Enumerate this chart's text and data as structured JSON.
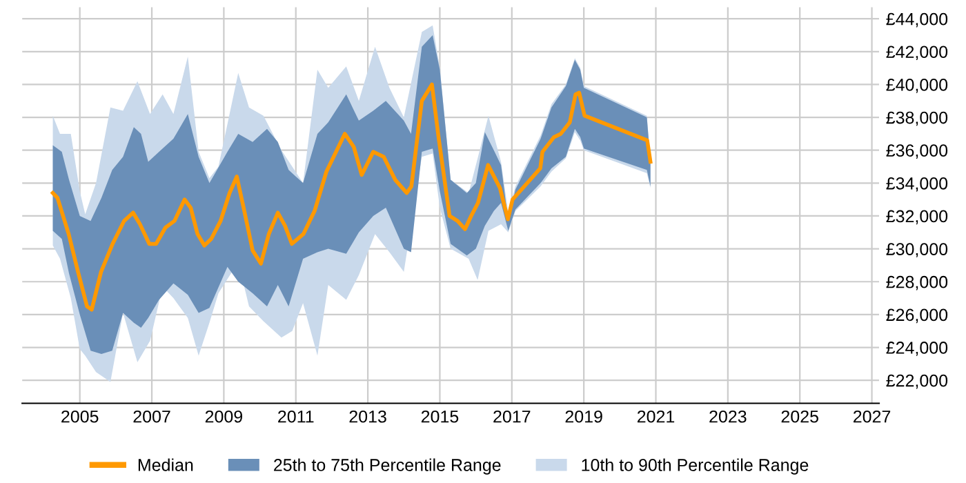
{
  "chart_data": {
    "type": "line",
    "xlim": [
      2003.4,
      2027.2
    ],
    "xticks": [
      2005,
      2007,
      2009,
      2011,
      2013,
      2015,
      2017,
      2019,
      2021,
      2023,
      2025,
      2027
    ],
    "ylim": [
      20600,
      44700
    ],
    "yticks": [
      {
        "value": 22000,
        "label": "£22,000"
      },
      {
        "value": 24000,
        "label": "£24,000"
      },
      {
        "value": 26000,
        "label": "£26,000"
      },
      {
        "value": 28000,
        "label": "£28,000"
      },
      {
        "value": 30000,
        "label": "£30,000"
      },
      {
        "value": 32000,
        "label": "£32,000"
      },
      {
        "value": 34000,
        "label": "£34,000"
      },
      {
        "value": 36000,
        "label": "£36,000"
      },
      {
        "value": 38000,
        "label": "£38,000"
      },
      {
        "value": 40000,
        "label": "£40,000"
      },
      {
        "value": 42000,
        "label": "£42,000"
      },
      {
        "value": 44000,
        "label": "£44,000"
      }
    ],
    "grid": true,
    "legend": "bottom",
    "marker": "none",
    "line_style": "solid",
    "series": [
      {
        "name": "Median",
        "color": "#ff9900",
        "x": [
          2004.25,
          2004.38,
          2004.69,
          2004.95,
          2005.2,
          2005.33,
          2005.59,
          2005.91,
          2006.23,
          2006.48,
          2006.67,
          2006.93,
          2007.12,
          2007.38,
          2007.63,
          2007.91,
          2008.08,
          2008.27,
          2008.46,
          2008.65,
          2008.91,
          2009.16,
          2009.36,
          2009.55,
          2009.8,
          2010.03,
          2010.25,
          2010.5,
          2010.7,
          2010.89,
          2011.21,
          2011.52,
          2011.85,
          2012.36,
          2012.61,
          2012.83,
          2013.15,
          2013.44,
          2013.76,
          2014.08,
          2014.21,
          2014.5,
          2014.78,
          2014.97,
          2015.27,
          2015.49,
          2015.7,
          2015.87,
          2016.06,
          2016.34,
          2016.67,
          2016.89,
          2017.02,
          2017.79,
          2017.85,
          2018.17,
          2018.36,
          2018.61,
          2018.77,
          2018.87,
          2019.02,
          2020.76,
          2020.85
        ],
        "values": [
          33400,
          33100,
          30900,
          28600,
          26500,
          26300,
          28600,
          30300,
          31700,
          32200,
          31500,
          30300,
          30300,
          31300,
          31700,
          33000,
          32500,
          30900,
          30200,
          30600,
          31700,
          33400,
          34400,
          32500,
          29900,
          29100,
          30900,
          32200,
          31400,
          30300,
          30900,
          32300,
          34700,
          37000,
          36200,
          34500,
          35900,
          35600,
          34200,
          33400,
          33800,
          39000,
          40000,
          36700,
          32000,
          31700,
          31200,
          32000,
          32800,
          35100,
          33700,
          31800,
          33000,
          34900,
          35900,
          36800,
          37000,
          37700,
          39400,
          39500,
          38100,
          36600,
          35300
        ]
      },
      {
        "name": "25th to 75th Percentile Range",
        "color": "#6a8fb8",
        "x": [
          2004.25,
          2004.5,
          2004.7,
          2005.0,
          2005.3,
          2005.6,
          2005.9,
          2006.2,
          2006.5,
          2006.7,
          2006.9,
          2007.2,
          2007.6,
          2008.0,
          2008.3,
          2008.6,
          2009.1,
          2009.4,
          2009.8,
          2010.2,
          2010.5,
          2010.8,
          2011.2,
          2011.6,
          2011.9,
          2012.4,
          2012.75,
          2013.15,
          2013.5,
          2014.0,
          2014.2,
          2014.5,
          2014.8,
          2015.0,
          2015.3,
          2015.75,
          2016.0,
          2016.25,
          2016.5,
          2016.7,
          2016.9,
          2017.1,
          2017.8,
          2018.1,
          2018.5,
          2018.75,
          2018.9,
          2019.0,
          2020.75,
          2020.85
        ],
        "values": [
          null,
          null,
          null,
          null,
          null,
          null,
          null,
          null,
          null,
          null,
          null,
          null,
          null,
          null,
          null,
          null,
          null,
          null,
          null,
          null,
          null,
          null,
          null,
          null,
          null,
          null,
          null,
          null,
          null,
          null,
          null,
          null,
          null,
          null,
          null,
          null,
          null,
          null,
          null,
          null,
          null,
          null,
          null,
          null,
          null,
          null,
          null,
          null,
          null,
          null
        ],
        "upper": [
          36300,
          35900,
          34200,
          32000,
          31700,
          33100,
          34800,
          35600,
          37400,
          37000,
          35300,
          35900,
          36700,
          38200,
          35600,
          34000,
          35900,
          37000,
          36500,
          37300,
          36500,
          34800,
          34000,
          37000,
          37700,
          39400,
          37800,
          38400,
          39000,
          37800,
          37000,
          42300,
          43000,
          40900,
          34200,
          33400,
          34000,
          37100,
          36000,
          35100,
          31700,
          33600,
          36700,
          38600,
          39900,
          41500,
          40900,
          39800,
          38000,
          35300
        ],
        "lower": [
          31100,
          30600,
          28500,
          26000,
          23800,
          23600,
          23800,
          26100,
          25500,
          25200,
          25800,
          26900,
          27900,
          27200,
          26100,
          26400,
          28900,
          28000,
          27300,
          26500,
          27800,
          26500,
          29400,
          29800,
          30000,
          29700,
          31000,
          32000,
          32500,
          30000,
          29800,
          35900,
          36100,
          33500,
          30300,
          29600,
          30000,
          31400,
          32300,
          32800,
          31100,
          32400,
          34000,
          34900,
          35600,
          37300,
          36800,
          36100,
          34800,
          33800
        ]
      },
      {
        "name": "10th to 90th Percentile Range",
        "color": "#c9d9eb",
        "x": [
          2004.25,
          2004.45,
          2004.75,
          2005.0,
          2005.15,
          2005.45,
          2005.85,
          2006.2,
          2006.6,
          2006.95,
          2007.3,
          2007.6,
          2008.0,
          2008.3,
          2008.6,
          2008.85,
          2009.4,
          2009.7,
          2010.1,
          2010.6,
          2010.9,
          2011.2,
          2011.6,
          2011.9,
          2012.4,
          2012.75,
          2013.2,
          2013.6,
          2014.0,
          2014.5,
          2014.8,
          2015.0,
          2015.3,
          2015.8,
          2016.05,
          2016.35,
          2016.7,
          2016.9,
          2017.1,
          2017.8,
          2018.1,
          2018.5,
          2018.75,
          2018.9,
          2019.0,
          2020.75,
          2020.85
        ],
        "values": [
          null,
          null,
          null,
          null,
          null,
          null,
          null,
          null,
          null,
          null,
          null,
          null,
          null,
          null,
          null,
          null,
          null,
          null,
          null,
          null,
          null,
          null,
          null,
          null,
          null,
          null,
          null,
          null,
          null,
          null,
          null,
          null,
          null,
          null,
          null,
          null,
          null,
          null,
          null,
          null,
          null,
          null,
          null,
          null,
          null,
          null,
          null
        ],
        "upper": [
          38100,
          37000,
          37000,
          33500,
          32100,
          34000,
          38600,
          38400,
          40200,
          38200,
          39400,
          38200,
          41700,
          35900,
          34300,
          35000,
          40700,
          38600,
          38100,
          36000,
          35000,
          34000,
          40900,
          39800,
          41100,
          39000,
          42300,
          39800,
          38000,
          43200,
          43600,
          41000,
          34200,
          33400,
          35500,
          38100,
          35300,
          32200,
          33800,
          36900,
          38800,
          40000,
          41600,
          41000,
          39900,
          38100,
          35400
        ],
        "lower": [
          30200,
          29400,
          27000,
          23900,
          23500,
          22500,
          21900,
          26100,
          23100,
          24400,
          27700,
          27000,
          25800,
          23500,
          25500,
          27300,
          29200,
          26500,
          25600,
          24600,
          25000,
          26700,
          23500,
          27800,
          26900,
          28400,
          30900,
          29800,
          28600,
          35600,
          35800,
          32500,
          30000,
          29400,
          28100,
          31100,
          31500,
          31000,
          32300,
          33800,
          34700,
          35500,
          37100,
          36600,
          36000,
          34600,
          33700
        ]
      }
    ]
  }
}
